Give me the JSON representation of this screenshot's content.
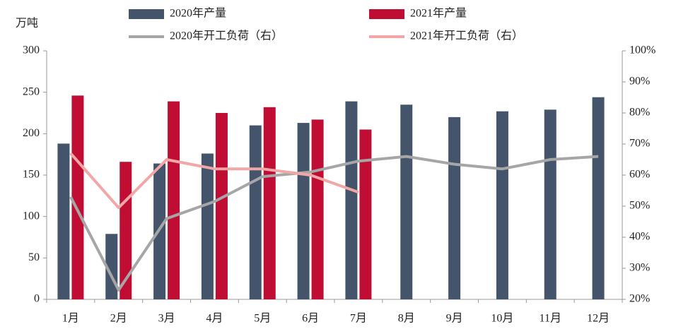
{
  "chart_data": {
    "type": "bar",
    "y_label": "万吨",
    "categories": [
      "1月",
      "2月",
      "3月",
      "4月",
      "5月",
      "6月",
      "7月",
      "8月",
      "9月",
      "10月",
      "11月",
      "12月"
    ],
    "series": [
      {
        "name": "2020年产量",
        "type": "bar",
        "color": "#44546a",
        "values": [
          188,
          79,
          164,
          176,
          210,
          213,
          239,
          235,
          220,
          227,
          229,
          244
        ]
      },
      {
        "name": "2021年产量",
        "type": "bar",
        "color": "#c00d33",
        "values": [
          246,
          166,
          239,
          225,
          232,
          217,
          205,
          null,
          null,
          null,
          null,
          null
        ]
      },
      {
        "name": "2020年开工负荷（右）",
        "type": "line",
        "axis": "y2",
        "color": "#a6a6a6",
        "values": [
          53,
          23,
          46,
          51.5,
          59.5,
          61,
          64.5,
          66,
          63.5,
          62,
          65,
          66
        ]
      },
      {
        "name": "2021年开工负荷（右）",
        "type": "line",
        "axis": "y2",
        "color": "#f2a7a7",
        "values": [
          67,
          49.5,
          65,
          62,
          62,
          60,
          54.5,
          null,
          null,
          null,
          null,
          null
        ]
      }
    ],
    "ylim": [
      0,
      300
    ],
    "yticks": [
      0,
      50,
      100,
      150,
      200,
      250,
      300
    ],
    "y2lim": [
      20,
      100
    ],
    "y2ticks": [
      {
        "value": 20,
        "label": "20%"
      },
      {
        "value": 30,
        "label": "30%"
      },
      {
        "value": 40,
        "label": "40%"
      },
      {
        "value": 50,
        "label": "50%"
      },
      {
        "value": 60,
        "label": "60%"
      },
      {
        "value": 70,
        "label": "70%"
      },
      {
        "value": 80,
        "label": "80%"
      },
      {
        "value": 90,
        "label": "90%"
      },
      {
        "value": 100,
        "label": "100%"
      }
    ]
  }
}
